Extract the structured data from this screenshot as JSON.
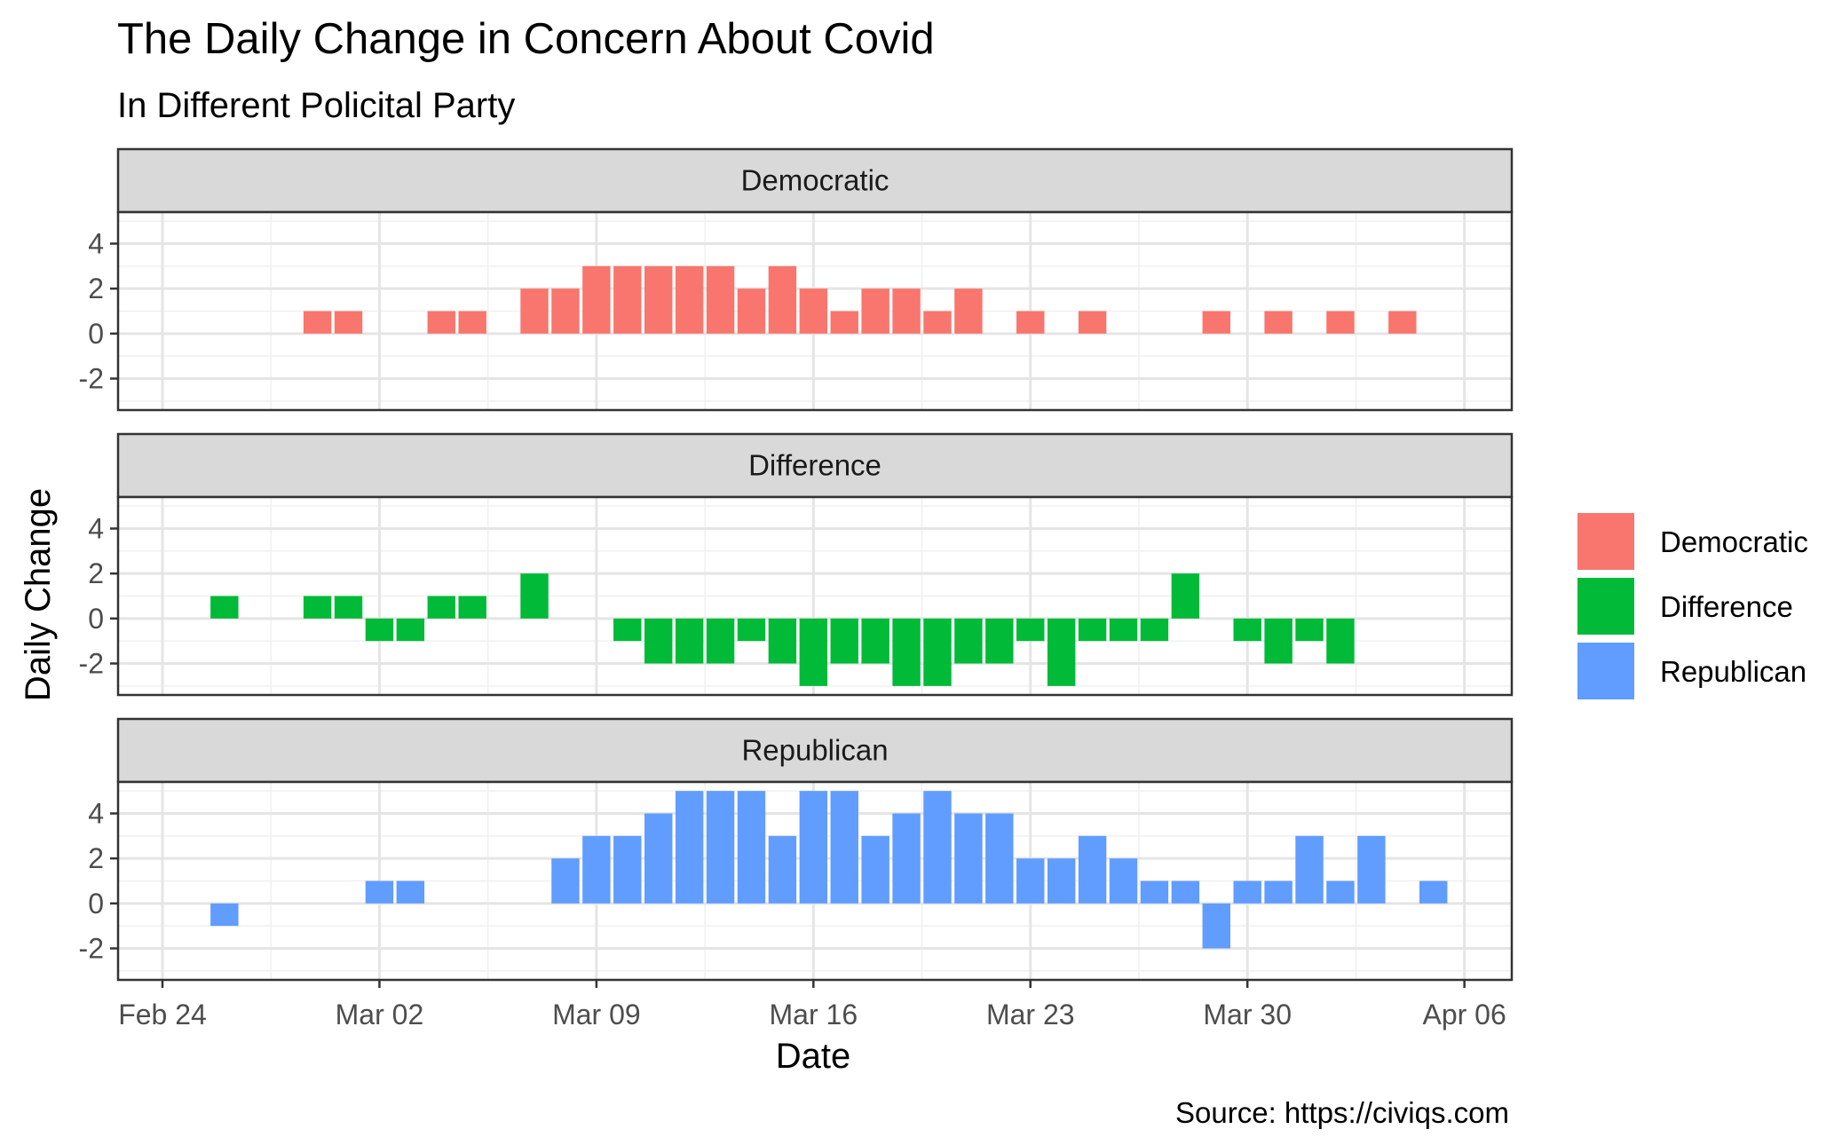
{
  "chart_data": {
    "type": "bar",
    "title": "The Daily Change in Concern About Covid",
    "subtitle": "In Different Policital Party",
    "xlabel": "Date",
    "ylabel": "Daily Change",
    "caption": "Source: https://civiqs.com",
    "x_axis": {
      "type": "date",
      "year": 2020,
      "range": [
        "2020-02-23",
        "2020-04-07"
      ],
      "tick_dates": [
        "2020-02-24",
        "2020-03-02",
        "2020-03-09",
        "2020-03-16",
        "2020-03-23",
        "2020-03-30",
        "2020-04-06"
      ],
      "tick_labels": [
        "Feb 24",
        "Mar 02",
        "Mar 09",
        "Mar 16",
        "Mar 23",
        "Mar 30",
        "Apr 06"
      ]
    },
    "y_axis": {
      "range": [
        -3.4,
        5.4
      ],
      "ticks": [
        -2,
        0,
        2,
        4
      ]
    },
    "grid": true,
    "legend": {
      "placement": "right",
      "entries": [
        "Democratic",
        "Difference",
        "Republican"
      ]
    },
    "series": [
      {
        "name": "Democratic",
        "color": "#F8766D",
        "points": [
          {
            "date": "2020-02-29",
            "value": 1
          },
          {
            "date": "2020-03-01",
            "value": 1
          },
          {
            "date": "2020-03-03",
            "value": 0
          },
          {
            "date": "2020-03-04",
            "value": 1
          },
          {
            "date": "2020-03-05",
            "value": 1
          },
          {
            "date": "2020-03-07",
            "value": 2
          },
          {
            "date": "2020-03-08",
            "value": 2
          },
          {
            "date": "2020-03-09",
            "value": 3
          },
          {
            "date": "2020-03-10",
            "value": 3
          },
          {
            "date": "2020-03-11",
            "value": 3
          },
          {
            "date": "2020-03-12",
            "value": 3
          },
          {
            "date": "2020-03-13",
            "value": 3
          },
          {
            "date": "2020-03-14",
            "value": 2
          },
          {
            "date": "2020-03-15",
            "value": 3
          },
          {
            "date": "2020-03-16",
            "value": 2
          },
          {
            "date": "2020-03-17",
            "value": 1
          },
          {
            "date": "2020-03-18",
            "value": 2
          },
          {
            "date": "2020-03-19",
            "value": 2
          },
          {
            "date": "2020-03-20",
            "value": 1
          },
          {
            "date": "2020-03-21",
            "value": 2
          },
          {
            "date": "2020-03-23",
            "value": 1
          },
          {
            "date": "2020-03-25",
            "value": 1
          },
          {
            "date": "2020-03-29",
            "value": 1
          },
          {
            "date": "2020-03-31",
            "value": 1
          },
          {
            "date": "2020-04-02",
            "value": 1
          },
          {
            "date": "2020-04-04",
            "value": 1
          }
        ]
      },
      {
        "name": "Difference",
        "color": "#00BA38",
        "points": [
          {
            "date": "2020-02-26",
            "value": 1
          },
          {
            "date": "2020-02-29",
            "value": 1
          },
          {
            "date": "2020-03-01",
            "value": 1
          },
          {
            "date": "2020-03-02",
            "value": -1
          },
          {
            "date": "2020-03-03",
            "value": -1
          },
          {
            "date": "2020-03-04",
            "value": 1
          },
          {
            "date": "2020-03-05",
            "value": 1
          },
          {
            "date": "2020-03-07",
            "value": 2
          },
          {
            "date": "2020-03-10",
            "value": -1
          },
          {
            "date": "2020-03-11",
            "value": -2
          },
          {
            "date": "2020-03-12",
            "value": -2
          },
          {
            "date": "2020-03-13",
            "value": -2
          },
          {
            "date": "2020-03-14",
            "value": -1
          },
          {
            "date": "2020-03-15",
            "value": -2
          },
          {
            "date": "2020-03-16",
            "value": -3
          },
          {
            "date": "2020-03-17",
            "value": -2
          },
          {
            "date": "2020-03-18",
            "value": -2
          },
          {
            "date": "2020-03-19",
            "value": -3
          },
          {
            "date": "2020-03-20",
            "value": -3
          },
          {
            "date": "2020-03-21",
            "value": -2
          },
          {
            "date": "2020-03-22",
            "value": -2
          },
          {
            "date": "2020-03-23",
            "value": -1
          },
          {
            "date": "2020-03-24",
            "value": -3
          },
          {
            "date": "2020-03-25",
            "value": -1
          },
          {
            "date": "2020-03-26",
            "value": -1
          },
          {
            "date": "2020-03-27",
            "value": -1
          },
          {
            "date": "2020-03-28",
            "value": 2
          },
          {
            "date": "2020-03-30",
            "value": -1
          },
          {
            "date": "2020-03-31",
            "value": -2
          },
          {
            "date": "2020-04-01",
            "value": -1
          },
          {
            "date": "2020-04-02",
            "value": -2
          }
        ]
      },
      {
        "name": "Republican",
        "color": "#619CFF",
        "points": [
          {
            "date": "2020-02-26",
            "value": -1
          },
          {
            "date": "2020-03-02",
            "value": 1
          },
          {
            "date": "2020-03-03",
            "value": 1
          },
          {
            "date": "2020-03-08",
            "value": 2
          },
          {
            "date": "2020-03-09",
            "value": 3
          },
          {
            "date": "2020-03-10",
            "value": 3
          },
          {
            "date": "2020-03-11",
            "value": 4
          },
          {
            "date": "2020-03-12",
            "value": 5
          },
          {
            "date": "2020-03-13",
            "value": 5
          },
          {
            "date": "2020-03-14",
            "value": 5
          },
          {
            "date": "2020-03-15",
            "value": 3
          },
          {
            "date": "2020-03-16",
            "value": 5
          },
          {
            "date": "2020-03-17",
            "value": 5
          },
          {
            "date": "2020-03-18",
            "value": 3
          },
          {
            "date": "2020-03-19",
            "value": 4
          },
          {
            "date": "2020-03-20",
            "value": 5
          },
          {
            "date": "2020-03-21",
            "value": 4
          },
          {
            "date": "2020-03-22",
            "value": 4
          },
          {
            "date": "2020-03-23",
            "value": 2
          },
          {
            "date": "2020-03-24",
            "value": 2
          },
          {
            "date": "2020-03-25",
            "value": 3
          },
          {
            "date": "2020-03-26",
            "value": 2
          },
          {
            "date": "2020-03-27",
            "value": 1
          },
          {
            "date": "2020-03-28",
            "value": 1
          },
          {
            "date": "2020-03-29",
            "value": -2
          },
          {
            "date": "2020-03-30",
            "value": 1
          },
          {
            "date": "2020-03-31",
            "value": 1
          },
          {
            "date": "2020-04-01",
            "value": 3
          },
          {
            "date": "2020-04-02",
            "value": 1
          },
          {
            "date": "2020-04-03",
            "value": 3
          },
          {
            "date": "2020-04-05",
            "value": 1
          }
        ]
      }
    ]
  }
}
